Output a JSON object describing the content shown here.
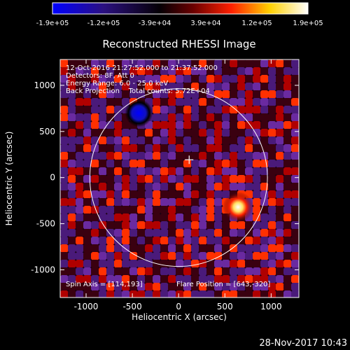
{
  "colorbar": {
    "ticks": [
      "-1.9e+05",
      "-1.2e+05",
      "-3.9e+04",
      "3.9e+04",
      "1.2e+05",
      "1.9e+05"
    ],
    "colors": [
      "#0000ff",
      "#2a0060",
      "#000000",
      "#ff2000",
      "#ffff80",
      "#ffffff"
    ]
  },
  "plot": {
    "title": "Reconstructed RHESSI Image",
    "xlabel": "Heliocentric X (arcsec)",
    "ylabel": "Heliocentric Y (arcsec)",
    "xticks": [
      "-1000",
      "-500",
      "0",
      "500",
      "1000"
    ],
    "yticks": [
      "1000",
      "500",
      "0",
      "-500",
      "-1000"
    ],
    "xlim": [
      -1280,
      1300
    ],
    "ylim": [
      -1300,
      1280
    ],
    "info_lines": [
      "12-Oct-2016 21:27:52.000 to 21:37:52.000",
      "Detectors: 8F, Att 0",
      "Energy Range: 6.0 - 25.0 keV",
      "Back Projection    Total counts: 5.72E+04"
    ],
    "spin_axis": "Spin Axis = [114,193]",
    "flare_position": "Flare Position = [643,-320]",
    "disk_radius_arcsec": 960,
    "sources": [
      {
        "x": 643,
        "y": -320,
        "type": "bright"
      },
      {
        "x": -430,
        "y": 700,
        "type": "negative"
      },
      {
        "x": 114,
        "y": 193,
        "type": "marker"
      }
    ]
  },
  "timestamp": "28-Nov-2017 10:43"
}
